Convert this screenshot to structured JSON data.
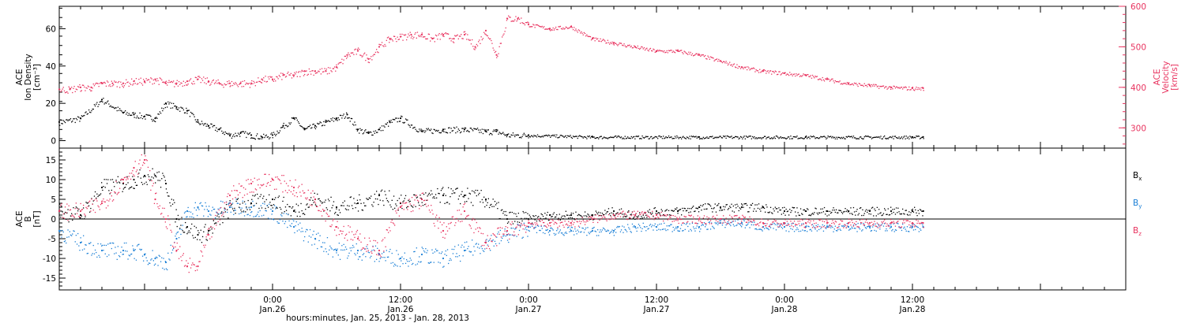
{
  "colors": {
    "black": "#000000",
    "red": "#e8335f",
    "blue": "#1a7fd6"
  },
  "chart_data": [
    {
      "type": "scatter",
      "ylabel_lines": [
        "ACE",
        "Ion Density",
        "[cm⁻³]"
      ],
      "ylabel_right_lines": [
        "ACE",
        "Velocity",
        "[km/s]"
      ],
      "ylim": [
        -4,
        72
      ],
      "yticks": [
        0,
        20,
        40,
        60
      ],
      "ylim_right": [
        250,
        600
      ],
      "yticks_right": [
        300,
        400,
        500,
        600
      ],
      "x_hours_range": [
        -20,
        80
      ],
      "data_end_hour": 61,
      "series": [
        {
          "id": "density",
          "axis": "left",
          "color": "#000000",
          "x": [
            -20,
            -18,
            -16,
            -14,
            -13,
            -12,
            -11,
            -10,
            -9,
            -8,
            -7,
            -6,
            -5,
            -4,
            -3,
            -2,
            -1,
            0,
            1,
            2,
            3,
            4,
            5,
            6,
            7,
            8,
            9,
            10,
            11,
            12,
            14,
            16,
            18,
            20,
            21,
            22,
            24,
            30,
            40,
            50,
            60,
            61
          ],
          "y": [
            10,
            12,
            22,
            15,
            14,
            13,
            12,
            20,
            18,
            16,
            10,
            8,
            6,
            3,
            4,
            3,
            2,
            3,
            8,
            12,
            6,
            8,
            10,
            12,
            14,
            6,
            4,
            6,
            10,
            12,
            5,
            6,
            6,
            5,
            5,
            3,
            3,
            2,
            2,
            2,
            2,
            2
          ]
        },
        {
          "id": "velocity",
          "axis": "right",
          "color": "#e8335f",
          "x": [
            -20,
            -19,
            -18,
            -17,
            -16,
            -15,
            -14,
            -13,
            -12,
            -11,
            -10,
            -9,
            -8,
            -7,
            -6,
            -5,
            -4,
            -3,
            -2,
            -1,
            0,
            1,
            2,
            3,
            4,
            5,
            6,
            7,
            8,
            9,
            10,
            11,
            12,
            13,
            14,
            15,
            16,
            17,
            18,
            19,
            20,
            21,
            22,
            23,
            24,
            26,
            28,
            30,
            32,
            34,
            36,
            38,
            40,
            42,
            44,
            46,
            48,
            50,
            52,
            54,
            56,
            58,
            60,
            61
          ],
          "y": [
            395,
            395,
            400,
            400,
            410,
            410,
            410,
            415,
            415,
            420,
            410,
            410,
            415,
            420,
            415,
            410,
            410,
            410,
            410,
            420,
            420,
            430,
            430,
            440,
            440,
            440,
            450,
            480,
            490,
            470,
            500,
            520,
            525,
            530,
            530,
            520,
            530,
            520,
            530,
            500,
            540,
            480,
            570,
            570,
            555,
            545,
            550,
            520,
            510,
            500,
            490,
            490,
            480,
            465,
            450,
            440,
            435,
            430,
            420,
            410,
            405,
            400,
            398,
            398
          ]
        }
      ]
    },
    {
      "type": "scatter",
      "ylabel_lines": [
        "ACE",
        "B",
        "[nT]"
      ],
      "ylim": [
        -18,
        18
      ],
      "yticks": [
        -15,
        -10,
        -5,
        0,
        5,
        10,
        15
      ],
      "x_hours_range": [
        -20,
        80
      ],
      "data_end_hour": 61,
      "legend": [
        {
          "label": "B",
          "sub": "x",
          "color": "#000000"
        },
        {
          "label": "B",
          "sub": "y",
          "color": "#1a7fd6"
        },
        {
          "label": "B",
          "sub": "z",
          "color": "#e8335f"
        }
      ],
      "series": [
        {
          "id": "bx",
          "color": "#000000",
          "x": [
            -20,
            -18,
            -16,
            -14,
            -13,
            -12,
            -11,
            -10,
            -9,
            -8,
            -7,
            -6,
            -4,
            -2,
            0,
            2,
            4,
            6,
            8,
            10,
            12,
            14,
            16,
            18,
            20,
            22,
            24,
            26,
            28,
            30,
            32,
            34,
            36,
            38,
            40,
            42,
            44,
            46,
            48,
            50,
            52,
            54,
            56,
            58,
            60,
            61
          ],
          "y": [
            2,
            1,
            8,
            9,
            10,
            11,
            11,
            9,
            0,
            -2,
            -4,
            -3,
            3,
            4,
            5,
            2,
            5,
            3,
            4,
            6,
            4,
            5,
            6,
            6,
            5,
            0,
            0,
            1,
            1,
            1,
            2,
            1,
            2,
            2,
            3,
            3,
            3,
            3,
            2,
            2,
            2,
            2,
            2,
            2,
            2,
            2
          ]
        },
        {
          "id": "by",
          "color": "#1a7fd6",
          "x": [
            -20,
            -18,
            -16,
            -14,
            -13,
            -12,
            -11,
            -10,
            -9,
            -8,
            -7,
            -6,
            -4,
            -2,
            0,
            2,
            4,
            6,
            8,
            10,
            12,
            14,
            16,
            18,
            20,
            22,
            24,
            26,
            28,
            30,
            32,
            34,
            36,
            38,
            40,
            42,
            44,
            46,
            48,
            50,
            52,
            54,
            56,
            58,
            60,
            61
          ],
          "y": [
            -3,
            -6,
            -8,
            -8,
            -8,
            -9,
            -10,
            -11,
            -5,
            2,
            3,
            2,
            3,
            3,
            2,
            -2,
            -5,
            -8,
            -8,
            -9,
            -10,
            -9,
            -10,
            -8,
            -6,
            -4,
            -2,
            -3,
            -3,
            -3,
            -3,
            -2,
            -2,
            -2,
            -2,
            -1,
            -1,
            -2,
            -2,
            -2,
            -2,
            -2,
            -2,
            -2,
            -2,
            -2
          ]
        },
        {
          "id": "bz",
          "color": "#e8335f",
          "x": [
            -20,
            -18,
            -16,
            -14,
            -13,
            -12,
            -11,
            -10,
            -9,
            -8,
            -7,
            -6,
            -4,
            -2,
            0,
            2,
            4,
            6,
            8,
            10,
            12,
            14,
            16,
            18,
            20,
            22,
            24,
            26,
            28,
            30,
            32,
            34,
            36,
            38,
            40,
            42,
            44,
            46,
            48,
            50,
            52,
            54,
            56,
            58,
            60,
            61
          ],
          "y": [
            2,
            2,
            4,
            10,
            13,
            15,
            5,
            0,
            -8,
            -12,
            -12,
            -4,
            6,
            9,
            10,
            8,
            5,
            -2,
            -5,
            -8,
            3,
            5,
            -3,
            2,
            -6,
            -3,
            -1,
            -1,
            -1,
            0,
            1,
            1,
            1,
            0,
            0,
            0,
            0,
            -1,
            -1,
            -1,
            -1,
            -1,
            -1,
            -1,
            -1,
            -1
          ]
        }
      ]
    }
  ],
  "xaxis": {
    "ticks": [
      {
        "hour": 0,
        "time": "0:00",
        "date": "Jan.26"
      },
      {
        "hour": 12,
        "time": "12:00",
        "date": "Jan.26"
      },
      {
        "hour": 24,
        "time": "0:00",
        "date": "Jan.27"
      },
      {
        "hour": 36,
        "time": "12:00",
        "date": "Jan.27"
      },
      {
        "hour": 48,
        "time": "0:00",
        "date": "Jan.28"
      },
      {
        "hour": 60,
        "time": "12:00",
        "date": "Jan.28"
      }
    ],
    "label": "hours:minutes, Jan. 25, 2013 - Jan. 28, 2013"
  }
}
